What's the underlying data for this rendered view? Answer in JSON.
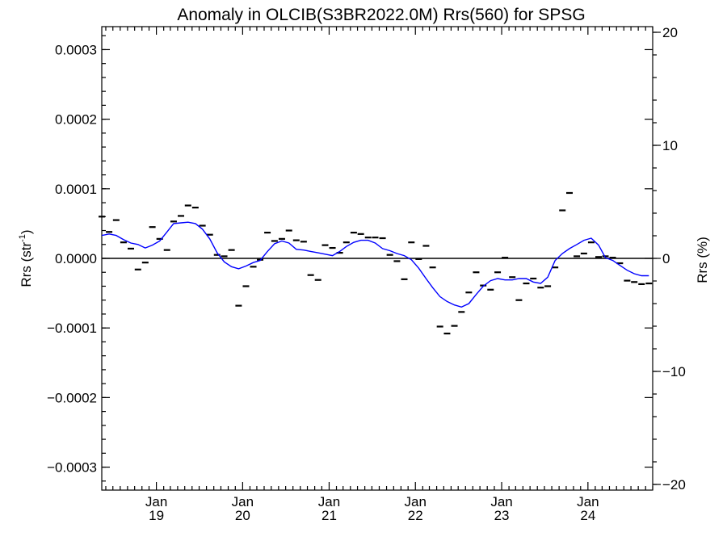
{
  "chart_data": {
    "type": "line",
    "title": "Anomaly in OLCIB(S3BR2022.0M) Rrs(560) for SPSG",
    "ylabel_left": "Rrs (str",
    "ylabel_left_sup": "-1",
    "ylabel_left_end": ")",
    "ylabel_right": "Rrs (%)",
    "y_left_lim": [
      -0.000333,
      0.000333
    ],
    "y_left_ticks": [
      {
        "value": 0.0003,
        "label": "0.0003"
      },
      {
        "value": 0.0002,
        "label": "0.0002"
      },
      {
        "value": 0.0001,
        "label": "0.0001"
      },
      {
        "value": 0.0,
        "label": "0.0000"
      },
      {
        "value": -0.0001,
        "label": "−0.0001"
      },
      {
        "value": -0.0002,
        "label": "−0.0002"
      },
      {
        "value": -0.0003,
        "label": "−0.0003"
      }
    ],
    "y_right_lim": [
      -20.5,
      20.5
    ],
    "y_right_ticks": [
      {
        "value": 20,
        "label": "20"
      },
      {
        "value": 10,
        "label": "10"
      },
      {
        "value": 0,
        "label": "0"
      },
      {
        "value": -10,
        "label": "−10"
      },
      {
        "value": -20,
        "label": "−20"
      }
    ],
    "x_lim": [
      "2018-05-15",
      "2024-10-01"
    ],
    "x_ticks": [
      {
        "value": "2019-01-01",
        "month": "Jan",
        "year": "19"
      },
      {
        "value": "2020-01-01",
        "month": "Jan",
        "year": "20"
      },
      {
        "value": "2021-01-01",
        "month": "Jan",
        "year": "21"
      },
      {
        "value": "2022-01-01",
        "month": "Jan",
        "year": "22"
      },
      {
        "value": "2023-01-01",
        "month": "Jan",
        "year": "23"
      },
      {
        "value": "2024-01-01",
        "month": "Jan",
        "year": "24"
      }
    ],
    "series": [
      {
        "type": "point",
        "x": [
          "2018-05-15",
          "2018-06-15",
          "2018-07-15",
          "2018-08-15",
          "2018-09-15",
          "2018-10-15",
          "2018-11-15",
          "2018-12-15",
          "2019-01-15",
          "2019-02-15",
          "2019-03-15",
          "2019-04-15",
          "2019-05-15",
          "2019-06-15",
          "2019-07-15",
          "2019-08-15",
          "2019-09-15",
          "2019-10-15",
          "2019-11-15",
          "2019-12-15",
          "2020-01-15",
          "2020-02-15",
          "2020-03-15",
          "2020-04-15",
          "2020-05-15",
          "2020-06-15",
          "2020-07-15",
          "2020-08-15",
          "2020-09-15",
          "2020-10-15",
          "2020-11-15",
          "2020-12-15",
          "2021-01-15",
          "2021-02-15",
          "2021-03-15",
          "2021-04-15",
          "2021-05-15",
          "2021-06-15",
          "2021-07-15",
          "2021-08-15",
          "2021-09-15",
          "2021-10-15",
          "2021-11-15",
          "2021-12-15",
          "2022-01-15",
          "2022-02-15",
          "2022-03-15",
          "2022-04-15",
          "2022-05-15",
          "2022-06-15",
          "2022-07-15",
          "2022-08-15",
          "2022-09-15",
          "2022-10-15",
          "2022-11-15",
          "2022-12-15",
          "2023-01-15",
          "2023-02-15",
          "2023-03-15",
          "2023-04-15",
          "2023-05-15",
          "2023-06-15",
          "2023-07-15",
          "2023-08-15",
          "2023-09-15",
          "2023-10-15",
          "2023-11-15",
          "2023-12-15",
          "2024-01-15",
          "2024-02-15",
          "2024-03-15",
          "2024-04-15",
          "2024-05-15",
          "2024-06-15",
          "2024-07-15",
          "2024-08-15",
          "2024-09-15"
        ],
        "y": [
          6e-05,
          3.8e-05,
          5.5e-05,
          2.3e-05,
          1.4e-05,
          -1.6e-05,
          -6e-06,
          4.5e-05,
          2.8e-05,
          1.2e-05,
          5.3e-05,
          6.1e-05,
          7.6e-05,
          7.3e-05,
          4.7e-05,
          3.4e-05,
          5e-06,
          3e-06,
          1.2e-05,
          -6.8e-05,
          -4e-05,
          -1.2e-05,
          -2e-06,
          3.7e-05,
          2.5e-05,
          2.8e-05,
          4e-05,
          2.6e-05,
          2.4e-05,
          -2.4e-05,
          -3.1e-05,
          1.9e-05,
          1.5e-05,
          8e-06,
          2.3e-05,
          3.7e-05,
          3.5e-05,
          3e-05,
          3e-05,
          2.9e-05,
          5e-06,
          -4e-06,
          -3e-05,
          2.3e-05,
          -1e-06,
          1.8e-05,
          -1.3e-05,
          -9.8e-05,
          -0.000108,
          -9.7e-05,
          -7.7e-05,
          -4.9e-05,
          -2e-05,
          -3.9e-05,
          -4.5e-05,
          -2e-05,
          1e-06,
          -2.7e-05,
          -6e-05,
          -3.6e-05,
          -2.9e-05,
          -4.2e-05,
          -4e-05,
          -1.3e-05,
          6.9e-05,
          9.4e-05,
          3e-06,
          7e-06,
          2.3e-05,
          2e-06,
          3e-06,
          1e-06,
          -7e-06,
          -3.2e-05,
          -3.4e-05,
          -3.7e-05,
          -3.6e-05
        ]
      },
      {
        "type": "line",
        "color": "#0000ff",
        "x": [
          "2018-05-15",
          "2018-06-15",
          "2018-07-15",
          "2018-08-15",
          "2018-09-15",
          "2018-10-15",
          "2018-11-15",
          "2018-12-15",
          "2019-01-15",
          "2019-02-15",
          "2019-03-15",
          "2019-04-15",
          "2019-05-15",
          "2019-06-15",
          "2019-07-15",
          "2019-08-15",
          "2019-09-15",
          "2019-10-15",
          "2019-11-15",
          "2019-12-15",
          "2020-01-15",
          "2020-02-15",
          "2020-03-15",
          "2020-04-15",
          "2020-05-15",
          "2020-06-15",
          "2020-07-15",
          "2020-08-15",
          "2020-09-15",
          "2020-10-15",
          "2020-11-15",
          "2020-12-15",
          "2021-01-15",
          "2021-02-15",
          "2021-03-15",
          "2021-04-15",
          "2021-05-15",
          "2021-06-15",
          "2021-07-15",
          "2021-08-15",
          "2021-09-15",
          "2021-10-15",
          "2021-11-15",
          "2021-12-15",
          "2022-01-15",
          "2022-02-15",
          "2022-03-15",
          "2022-04-15",
          "2022-05-15",
          "2022-06-15",
          "2022-07-15",
          "2022-08-15",
          "2022-09-15",
          "2022-10-15",
          "2022-11-15",
          "2022-12-15",
          "2023-01-15",
          "2023-02-15",
          "2023-03-15",
          "2023-04-15",
          "2023-05-15",
          "2023-06-15",
          "2023-07-15",
          "2023-08-15",
          "2023-09-15",
          "2023-10-15",
          "2023-11-15",
          "2023-12-15",
          "2024-01-15",
          "2024-02-15",
          "2024-03-15",
          "2024-04-15",
          "2024-05-15",
          "2024-06-15",
          "2024-07-15",
          "2024-08-15",
          "2024-09-15"
        ],
        "y": [
          3.3e-05,
          3.5e-05,
          3.3e-05,
          2.7e-05,
          2.2e-05,
          2e-05,
          1.5e-05,
          1.9e-05,
          2.5e-05,
          3.8e-05,
          5e-05,
          5.1e-05,
          5.2e-05,
          5e-05,
          4.2e-05,
          2.8e-05,
          8e-06,
          -5e-06,
          -1.2e-05,
          -1.5e-05,
          -1.1e-05,
          -6e-06,
          -3e-06,
          1e-05,
          2.1e-05,
          2.5e-05,
          2.2e-05,
          1.3e-05,
          1.2e-05,
          1e-05,
          8e-06,
          6e-06,
          4e-06,
          1e-05,
          1.7e-05,
          2.3e-05,
          2.6e-05,
          2.6e-05,
          2.2e-05,
          1.4e-05,
          1.1e-05,
          7e-06,
          4e-06,
          -2e-06,
          -1.4e-05,
          -2.9e-05,
          -4.2e-05,
          -5.5e-05,
          -6.2e-05,
          -6.7e-05,
          -7e-05,
          -6.5e-05,
          -5.2e-05,
          -4e-05,
          -3.2e-05,
          -2.9e-05,
          -3.1e-05,
          -3.1e-05,
          -2.9e-05,
          -2.9e-05,
          -3.4e-05,
          -3.6e-05,
          -2.7e-05,
          -3e-06,
          7e-06,
          1.4e-05,
          2e-05,
          2.6e-05,
          2.9e-05,
          1.9e-05,
          1e-06,
          -3e-06,
          -1e-05,
          -1.7e-05,
          -2.2e-05,
          -2.5e-05,
          -2.5e-05
        ]
      }
    ]
  }
}
